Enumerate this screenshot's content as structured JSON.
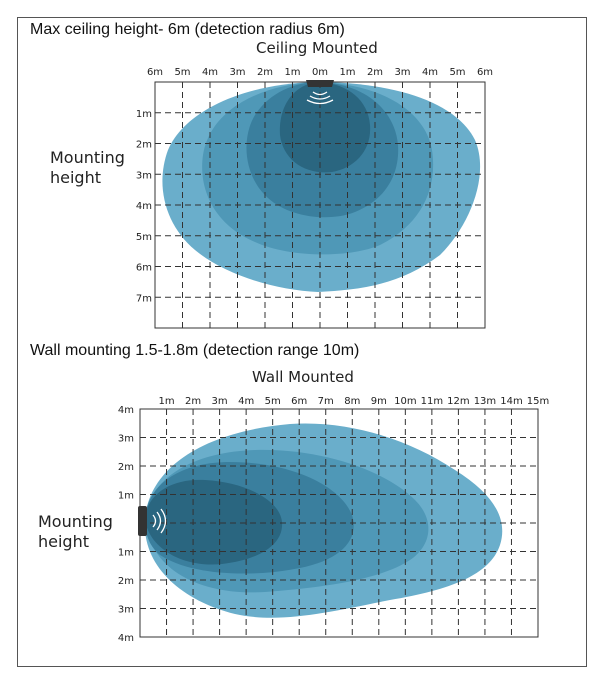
{
  "ceiling": {
    "caption": "Max ceiling height- 6m (detection radius 6m)",
    "title": "Ceiling Mounted",
    "side_label_line1": "Mounting",
    "side_label_line2": "height",
    "x_ticks": [
      "6m",
      "5m",
      "4m",
      "3m",
      "2m",
      "1m",
      "0m",
      "1m",
      "2m",
      "3m",
      "4m",
      "5m",
      "6m"
    ],
    "y_ticks": [
      "1m",
      "2m",
      "3m",
      "4m",
      "5m",
      "6m",
      "7m"
    ]
  },
  "wall": {
    "caption": "Wall mounting 1.5-1.8m (detection range 10m)",
    "title": "Wall Mounted",
    "side_label_line1": "Mounting",
    "side_label_line2": "height",
    "x_ticks": [
      "1m",
      "2m",
      "3m",
      "4m",
      "5m",
      "6m",
      "7m",
      "8m",
      "9m",
      "10m",
      "11m",
      "12m",
      "13m",
      "14m",
      "15m"
    ],
    "y_ticks": [
      "4m",
      "3m",
      "2m",
      "1m",
      "1m",
      "2m",
      "3m",
      "4m"
    ]
  },
  "colors": {
    "zone_outer": "#6aaecb",
    "zone_2": "#4f98b7",
    "zone_3": "#3a7f9e",
    "zone_core": "#2a6680",
    "grid": "#333333",
    "sensor": "#333333"
  }
}
